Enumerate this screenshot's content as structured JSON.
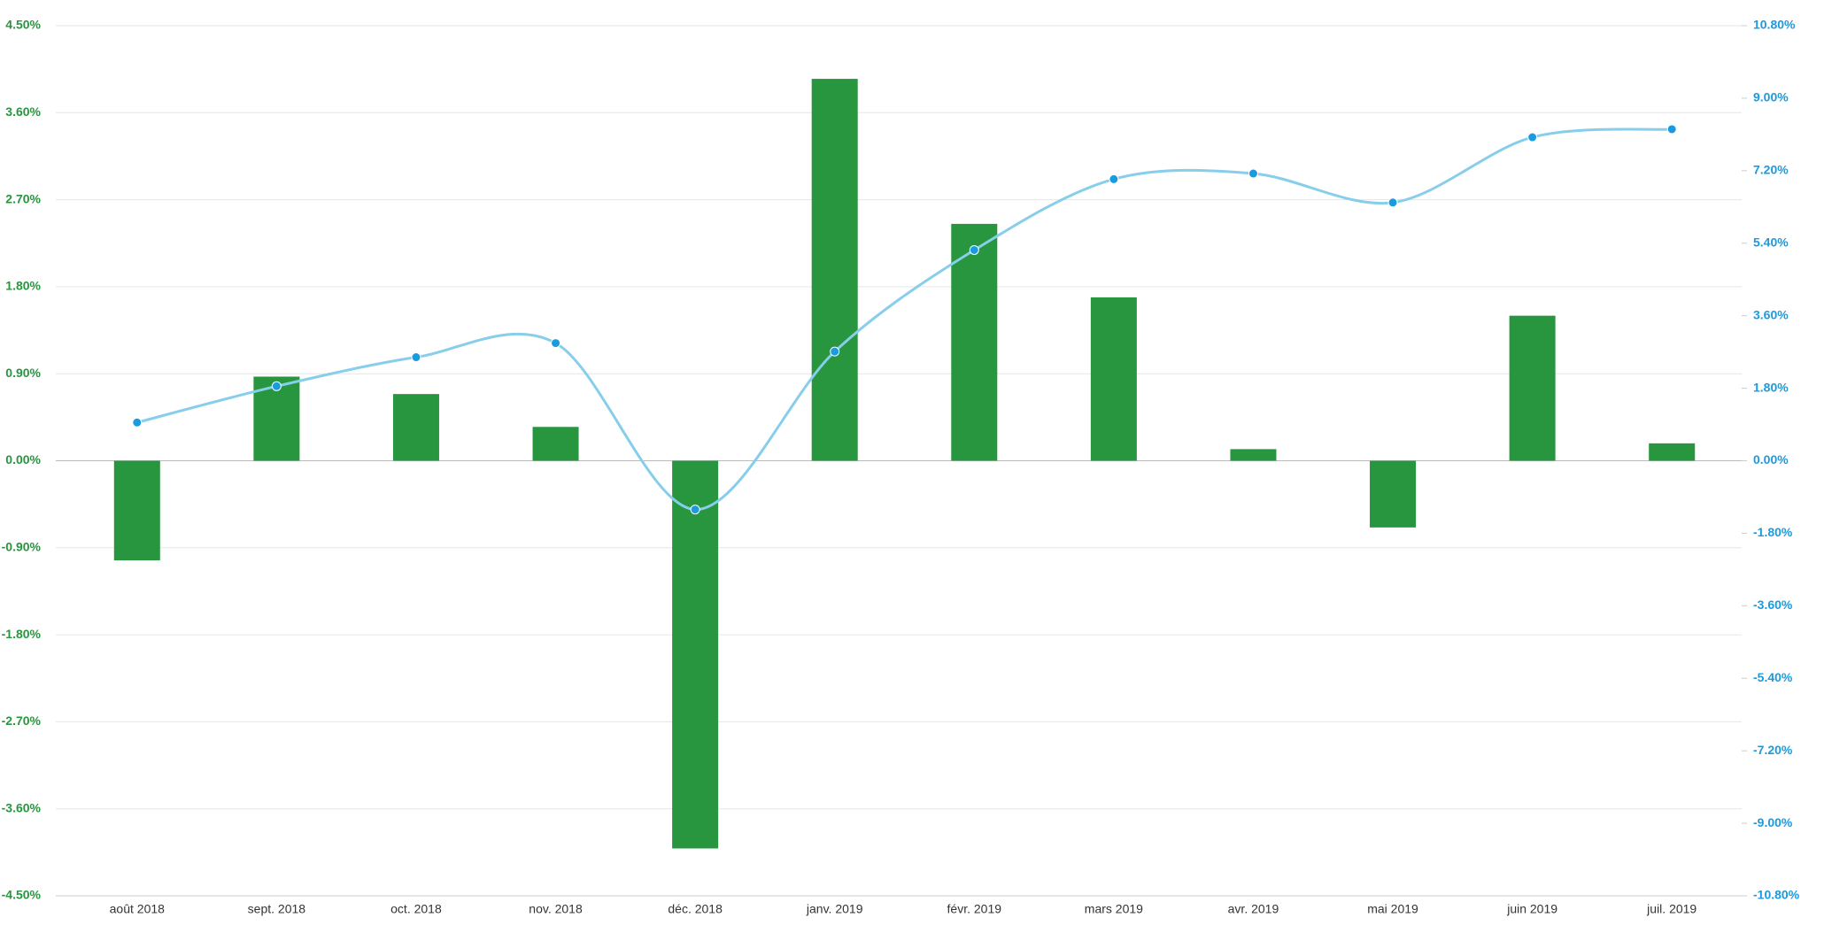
{
  "chart_data": {
    "type": "bar-line",
    "categories": [
      "août 2018",
      "sept. 2018",
      "oct. 2018",
      "nov. 2018",
      "déc. 2018",
      "janv. 2019",
      "févr. 2019",
      "mars 2019",
      "avr. 2019",
      "mai 2019",
      "juin 2019",
      "juil. 2019"
    ],
    "series": [
      {
        "type": "bar",
        "color": "#27963f",
        "values": [
          -1.03,
          0.87,
          0.69,
          0.35,
          -4.01,
          3.95,
          2.45,
          1.69,
          0.12,
          -0.69,
          1.5,
          0.18
        ]
      },
      {
        "type": "line",
        "axis": "y2",
        "color": "#87ceeb",
        "values": [
          0.95,
          1.85,
          2.57,
          2.92,
          -1.21,
          2.71,
          5.23,
          6.99,
          7.13,
          6.41,
          8.03,
          8.23
        ]
      }
    ],
    "ylim": [
      -4.5,
      4.5
    ],
    "yticks": [
      {
        "value": -4.5,
        "label": "-4.50%"
      },
      {
        "value": -3.6,
        "label": "-3.60%"
      },
      {
        "value": -2.7,
        "label": "-2.70%"
      },
      {
        "value": -1.8,
        "label": "-1.80%"
      },
      {
        "value": -0.9,
        "label": "-0.90%"
      },
      {
        "value": 0,
        "label": "0.00%"
      },
      {
        "value": 0.9,
        "label": "0.90%"
      },
      {
        "value": 1.8,
        "label": "1.80%"
      },
      {
        "value": 2.7,
        "label": "2.70%"
      },
      {
        "value": 3.6,
        "label": "3.60%"
      },
      {
        "value": 4.5,
        "label": "4.50%"
      }
    ],
    "y2lim": [
      -10.8,
      10.8
    ],
    "y2ticks": [
      {
        "value": -10.8,
        "label": "-10.80%"
      },
      {
        "value": -9,
        "label": "-9.00%"
      },
      {
        "value": -7.2,
        "label": "-7.20%"
      },
      {
        "value": -5.4,
        "label": "-5.40%"
      },
      {
        "value": -3.6,
        "label": "-3.60%"
      },
      {
        "value": -1.8,
        "label": "-1.80%"
      },
      {
        "value": 0,
        "label": "0.00%"
      },
      {
        "value": 1.8,
        "label": "1.80%"
      },
      {
        "value": 3.6,
        "label": "3.60%"
      },
      {
        "value": 5.4,
        "label": "5.40%"
      },
      {
        "value": 7.2,
        "label": "7.20%"
      },
      {
        "value": 9,
        "label": "9.00%"
      },
      {
        "value": 10.8,
        "label": "10.80%"
      }
    ],
    "yticks_color": "#27963f",
    "y2ticks_color": "#1a9be0",
    "marker_color": "#1a9be0",
    "grid": true
  }
}
